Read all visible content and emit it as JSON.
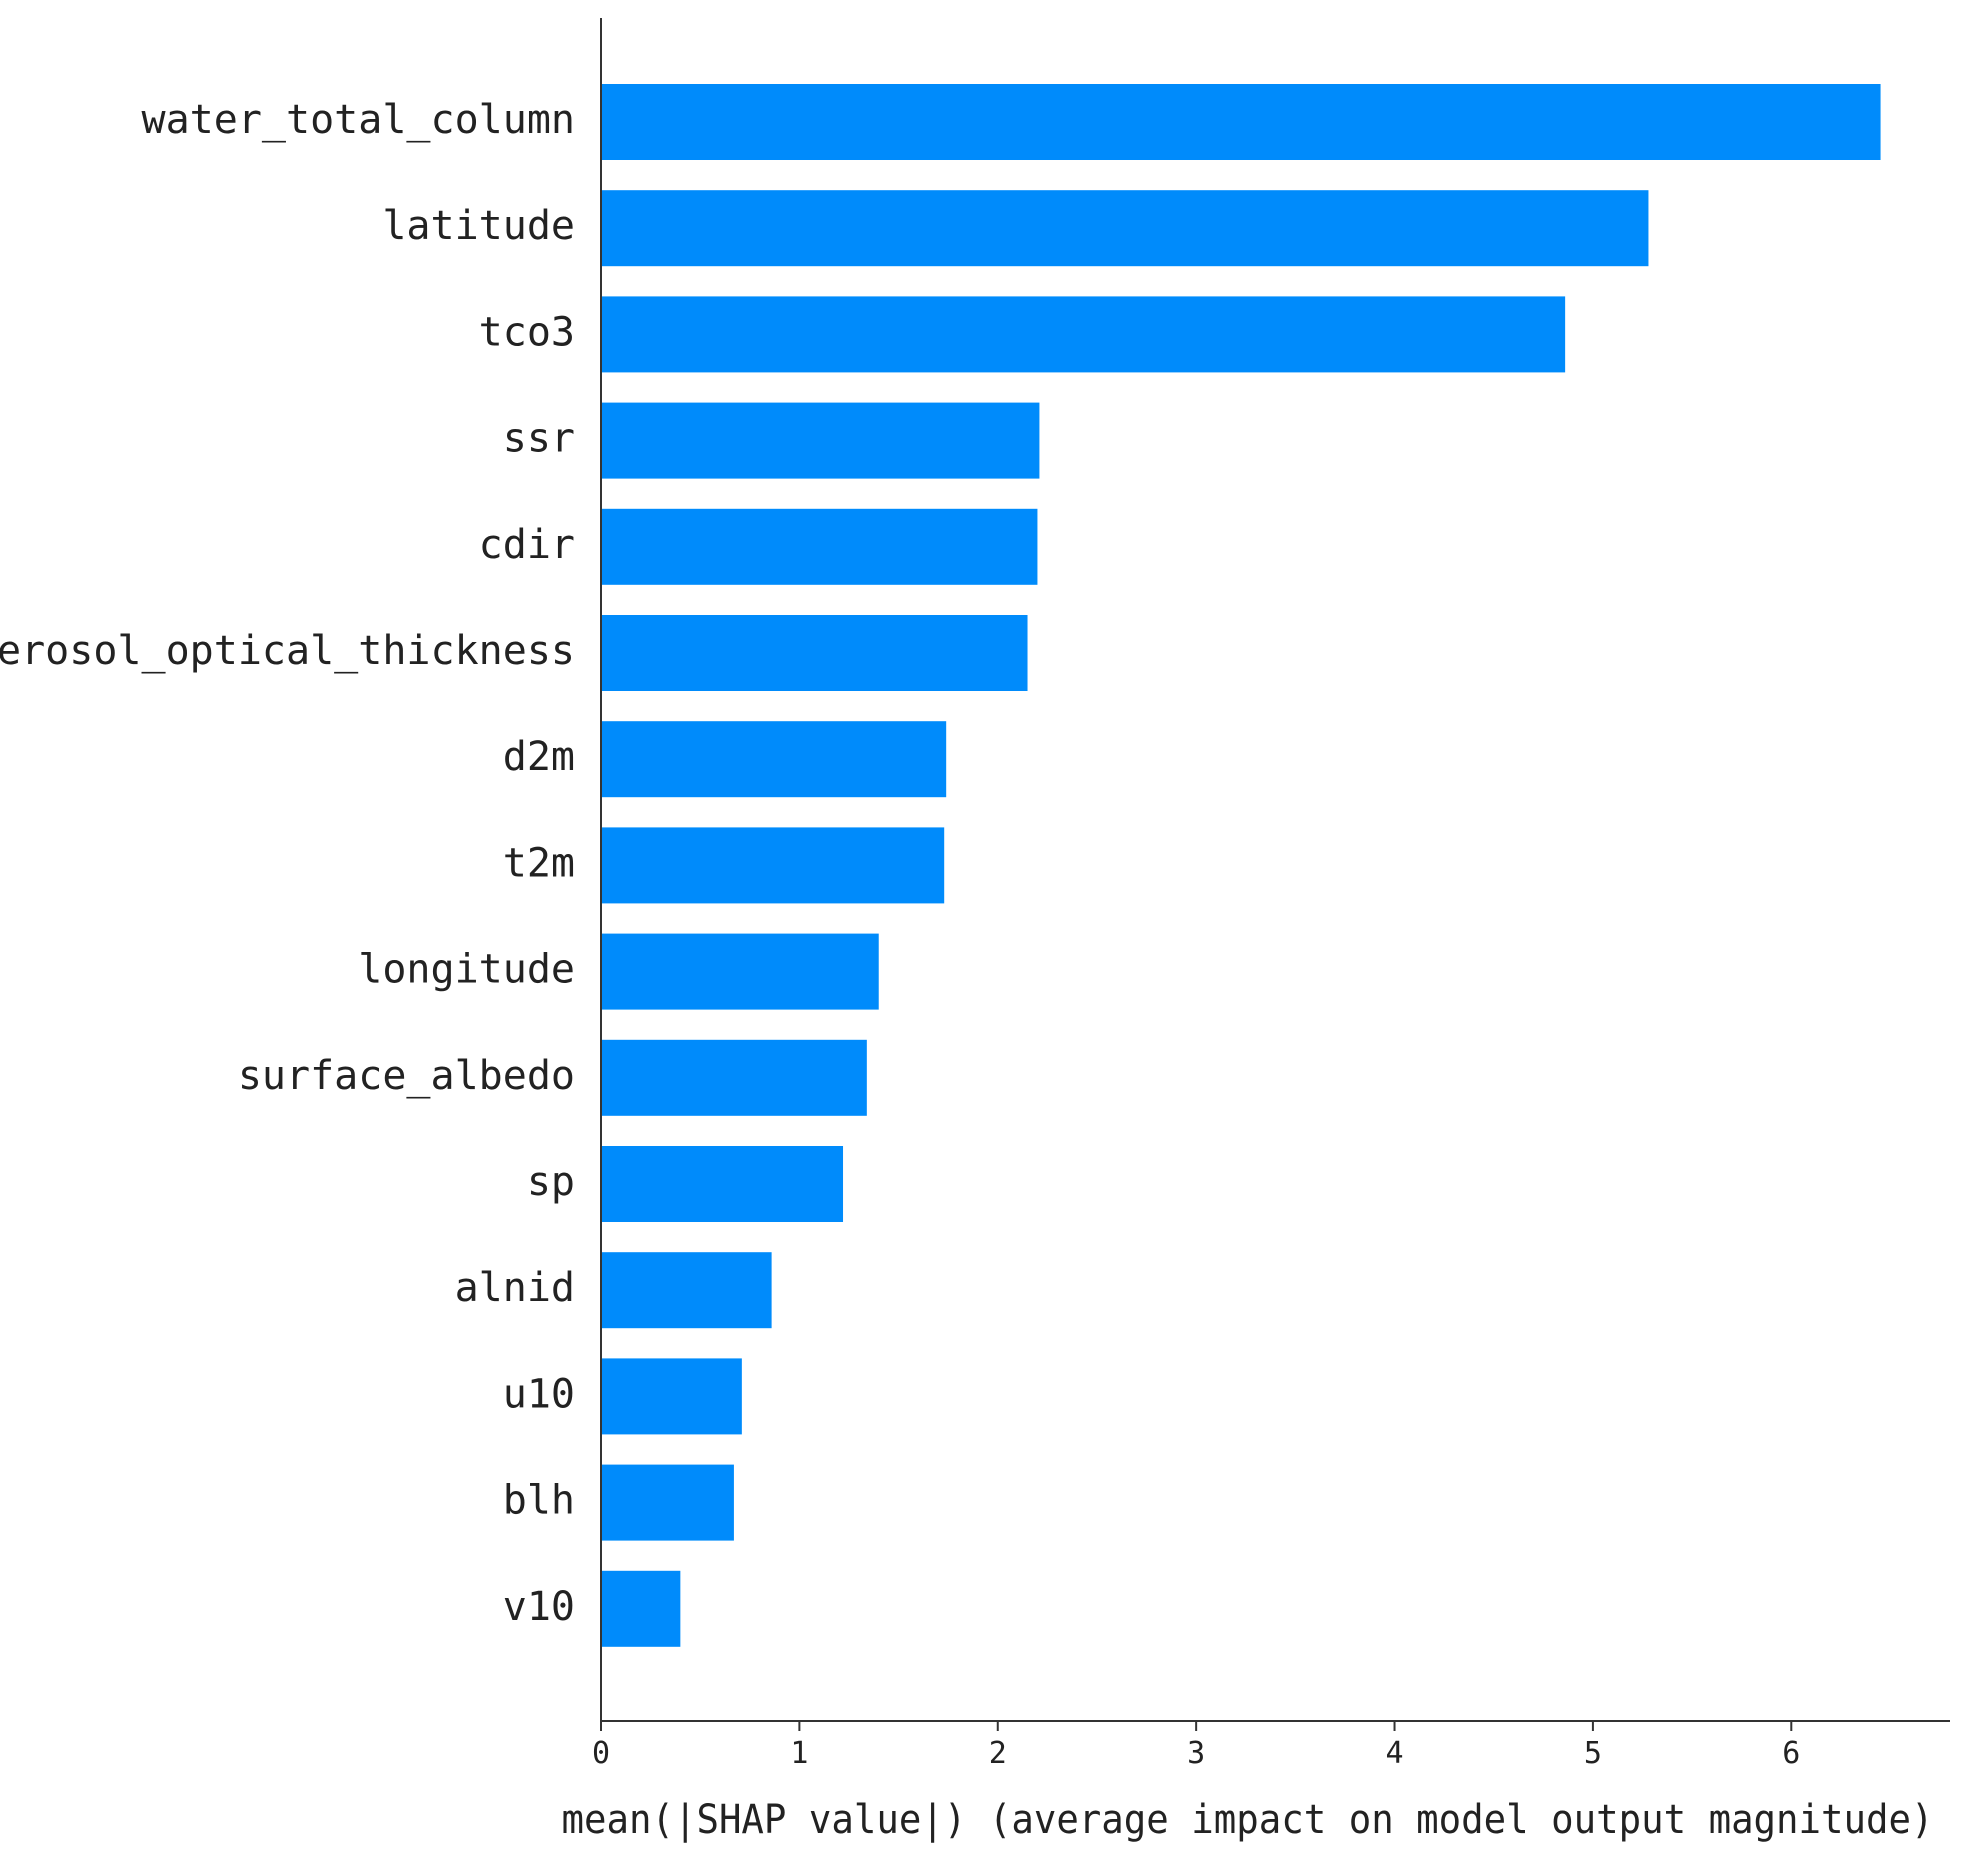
{
  "chart_data": {
    "type": "bar",
    "orientation": "horizontal",
    "title": "",
    "xlabel": "mean(|SHAP value|) (average impact on model output magnitude)",
    "ylabel": "",
    "xlim": [
      0,
      6.8
    ],
    "xticks": [
      0,
      1,
      2,
      3,
      4,
      5,
      6
    ],
    "grid": false,
    "legend": "none",
    "bar_color": "#008bfb",
    "axis_color": "#333333",
    "text_color": "#222222",
    "categories": [
      "water_total_column",
      "latitude",
      "tco3",
      "ssr",
      "cdir",
      "aerosol_optical_thickness",
      "d2m",
      "t2m",
      "longitude",
      "surface_albedo",
      "sp",
      "alnid",
      "u10",
      "blh",
      "v10"
    ],
    "values": [
      6.45,
      5.28,
      4.86,
      2.21,
      2.2,
      2.15,
      1.74,
      1.73,
      1.4,
      1.34,
      1.22,
      0.86,
      0.71,
      0.67,
      0.4
    ]
  }
}
